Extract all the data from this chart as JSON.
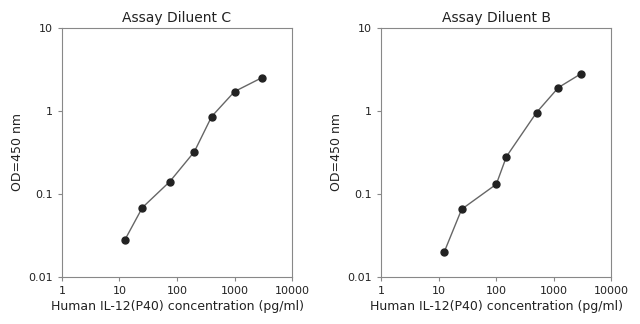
{
  "chart_C": {
    "title": "Assay Diluent C",
    "x": [
      12.5,
      25,
      75,
      200,
      400,
      1000,
      3000
    ],
    "y": [
      0.028,
      0.068,
      0.14,
      0.32,
      0.85,
      1.7,
      2.5
    ]
  },
  "chart_B": {
    "title": "Assay Diluent B",
    "x": [
      12.5,
      25,
      100,
      150,
      500,
      1200,
      3000
    ],
    "y": [
      0.02,
      0.065,
      0.13,
      0.28,
      0.95,
      1.9,
      2.8
    ]
  },
  "xlabel": "Human IL-12(P40) concentration (pg/ml)",
  "ylabel": "OD=450 nm",
  "xlim": [
    1,
    10000
  ],
  "ylim": [
    0.01,
    10
  ],
  "line_color": "#666666",
  "marker_color": "#222222",
  "marker_size": 5,
  "title_fontsize": 10,
  "label_fontsize": 9,
  "tick_fontsize": 8,
  "text_color": "#222222",
  "background_color": "#ffffff",
  "spine_color": "#888888"
}
